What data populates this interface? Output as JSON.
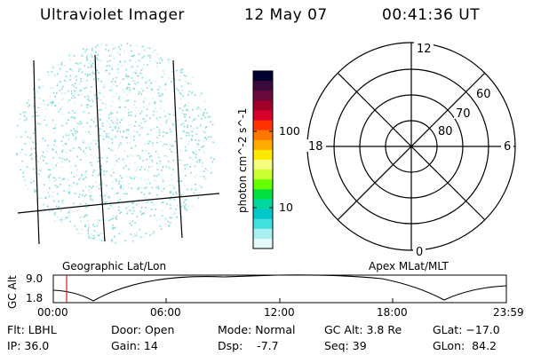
{
  "header": {
    "title": "Ultraviolet Imager",
    "date": "12 May 07",
    "time": "00:41:36 UT"
  },
  "colorbar": {
    "label": "photon cm^-2 s^-1",
    "ticks": [
      "100",
      "10"
    ],
    "colors": [
      "#000033",
      "#3a0a3a",
      "#6a0a3a",
      "#a0002a",
      "#d8002a",
      "#ff3300",
      "#ff7700",
      "#ffaa00",
      "#ffe800",
      "#f6ff80",
      "#c8ff30",
      "#66ff00",
      "#00e040",
      "#00d8a0",
      "#00c8c8",
      "#40e0e0",
      "#a8f0f0",
      "#e4fafa"
    ]
  },
  "polar": {
    "mlt_labels": {
      "top": "12",
      "right": "6",
      "bottom": "0",
      "left": "18"
    },
    "lat_labels": [
      "60",
      "70",
      "80"
    ]
  },
  "strip": {
    "left_label": "Geographic Lat/Lon",
    "right_label": "Apex MLat/MLT",
    "axis_title": "GC Alt",
    "y_ticks": [
      "9.0",
      "1.8"
    ],
    "x_ticks": [
      "00:00",
      "06:00",
      "12:00",
      "18:00",
      "23:59"
    ]
  },
  "status": {
    "flt": "Flt: LBHL",
    "ip": "IP: 36.0",
    "door": "Door: Open",
    "gain": "Gain: 14",
    "mode": "Mode: Normal",
    "dsp": "Dsp:    -7.7",
    "gcalt": "GC Alt: 3.8 Re",
    "seq": "Seq: 39",
    "glat": "GLat: −17.0",
    "glon": "GLon:  84.2"
  },
  "accent_colors": {
    "noise": "#7fd8d8",
    "marker": "#cc2222"
  }
}
